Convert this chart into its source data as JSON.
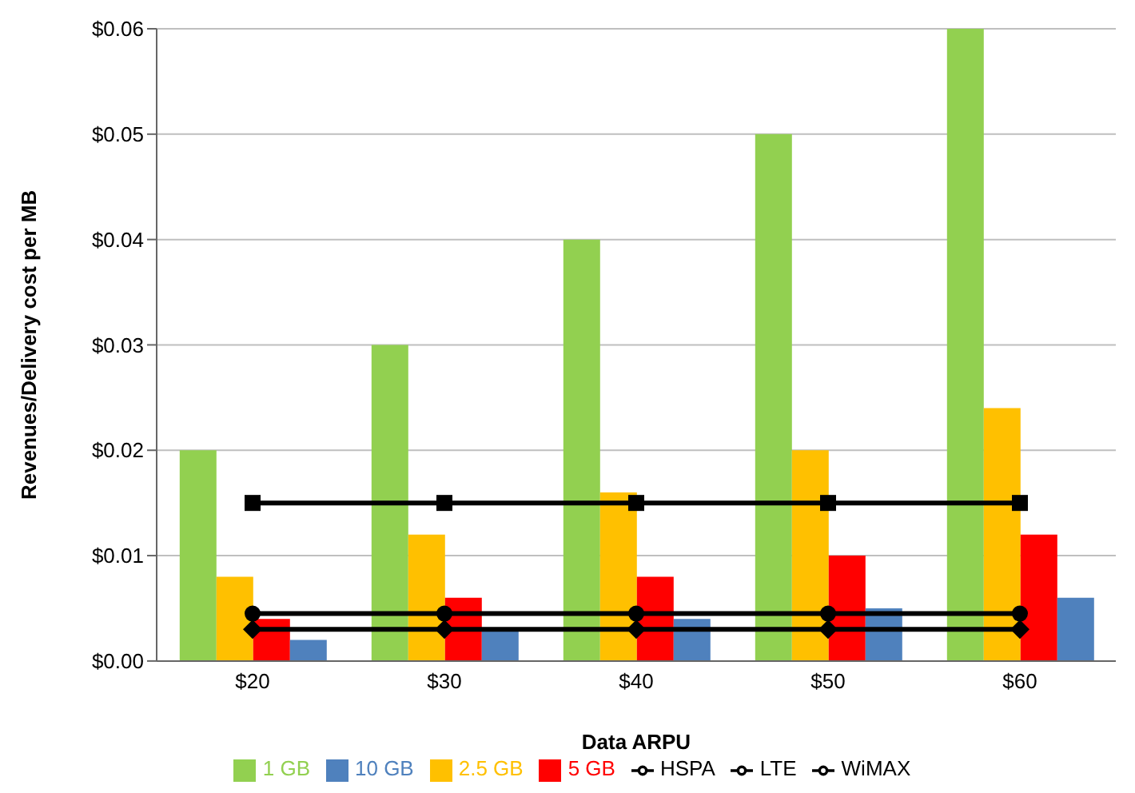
{
  "chart_data": {
    "type": "bar",
    "xlabel": "Data ARPU",
    "ylabel": "Revenues/Delivery cost per MB",
    "categories": [
      "$20",
      "$30",
      "$40",
      "$50",
      "$60"
    ],
    "series": [
      {
        "name": "1 GB",
        "color": "#92d050",
        "values": [
          0.02,
          0.03,
          0.04,
          0.05,
          0.06
        ]
      },
      {
        "name": "2.5 GB",
        "color": "#ffc000",
        "values": [
          0.008,
          0.012,
          0.016,
          0.02,
          0.024
        ]
      },
      {
        "name": "5 GB",
        "color": "#ff0000",
        "values": [
          0.004,
          0.006,
          0.008,
          0.01,
          0.012
        ]
      },
      {
        "name": "10 GB",
        "color": "#4f81bd",
        "values": [
          0.002,
          0.003,
          0.004,
          0.005,
          0.006
        ]
      },
      {
        "name": "HSPA",
        "type": "line",
        "color": "#000000",
        "marker": "square",
        "values": [
          0.015,
          0.015,
          0.015,
          0.015,
          0.015
        ]
      },
      {
        "name": "LTE",
        "type": "line",
        "color": "#000000",
        "marker": "circle",
        "values": [
          0.0045,
          0.0045,
          0.0045,
          0.0045,
          0.0045
        ]
      },
      {
        "name": "WiMAX",
        "type": "line",
        "color": "#000000",
        "marker": "diamond",
        "values": [
          0.003,
          0.003,
          0.003,
          0.003,
          0.003
        ]
      }
    ],
    "ylim": [
      0,
      0.06
    ],
    "yticks": [
      {
        "value": 0,
        "label": "$0.00"
      },
      {
        "value": 0.01,
        "label": "$0.01"
      },
      {
        "value": 0.02,
        "label": "$0.02"
      },
      {
        "value": 0.03,
        "label": "$0.03"
      },
      {
        "value": 0.04,
        "label": "$0.04"
      },
      {
        "value": 0.05,
        "label": "$0.05"
      },
      {
        "value": 0.06,
        "label": "$0.06"
      }
    ],
    "grid": "y",
    "legend": "bottom"
  }
}
